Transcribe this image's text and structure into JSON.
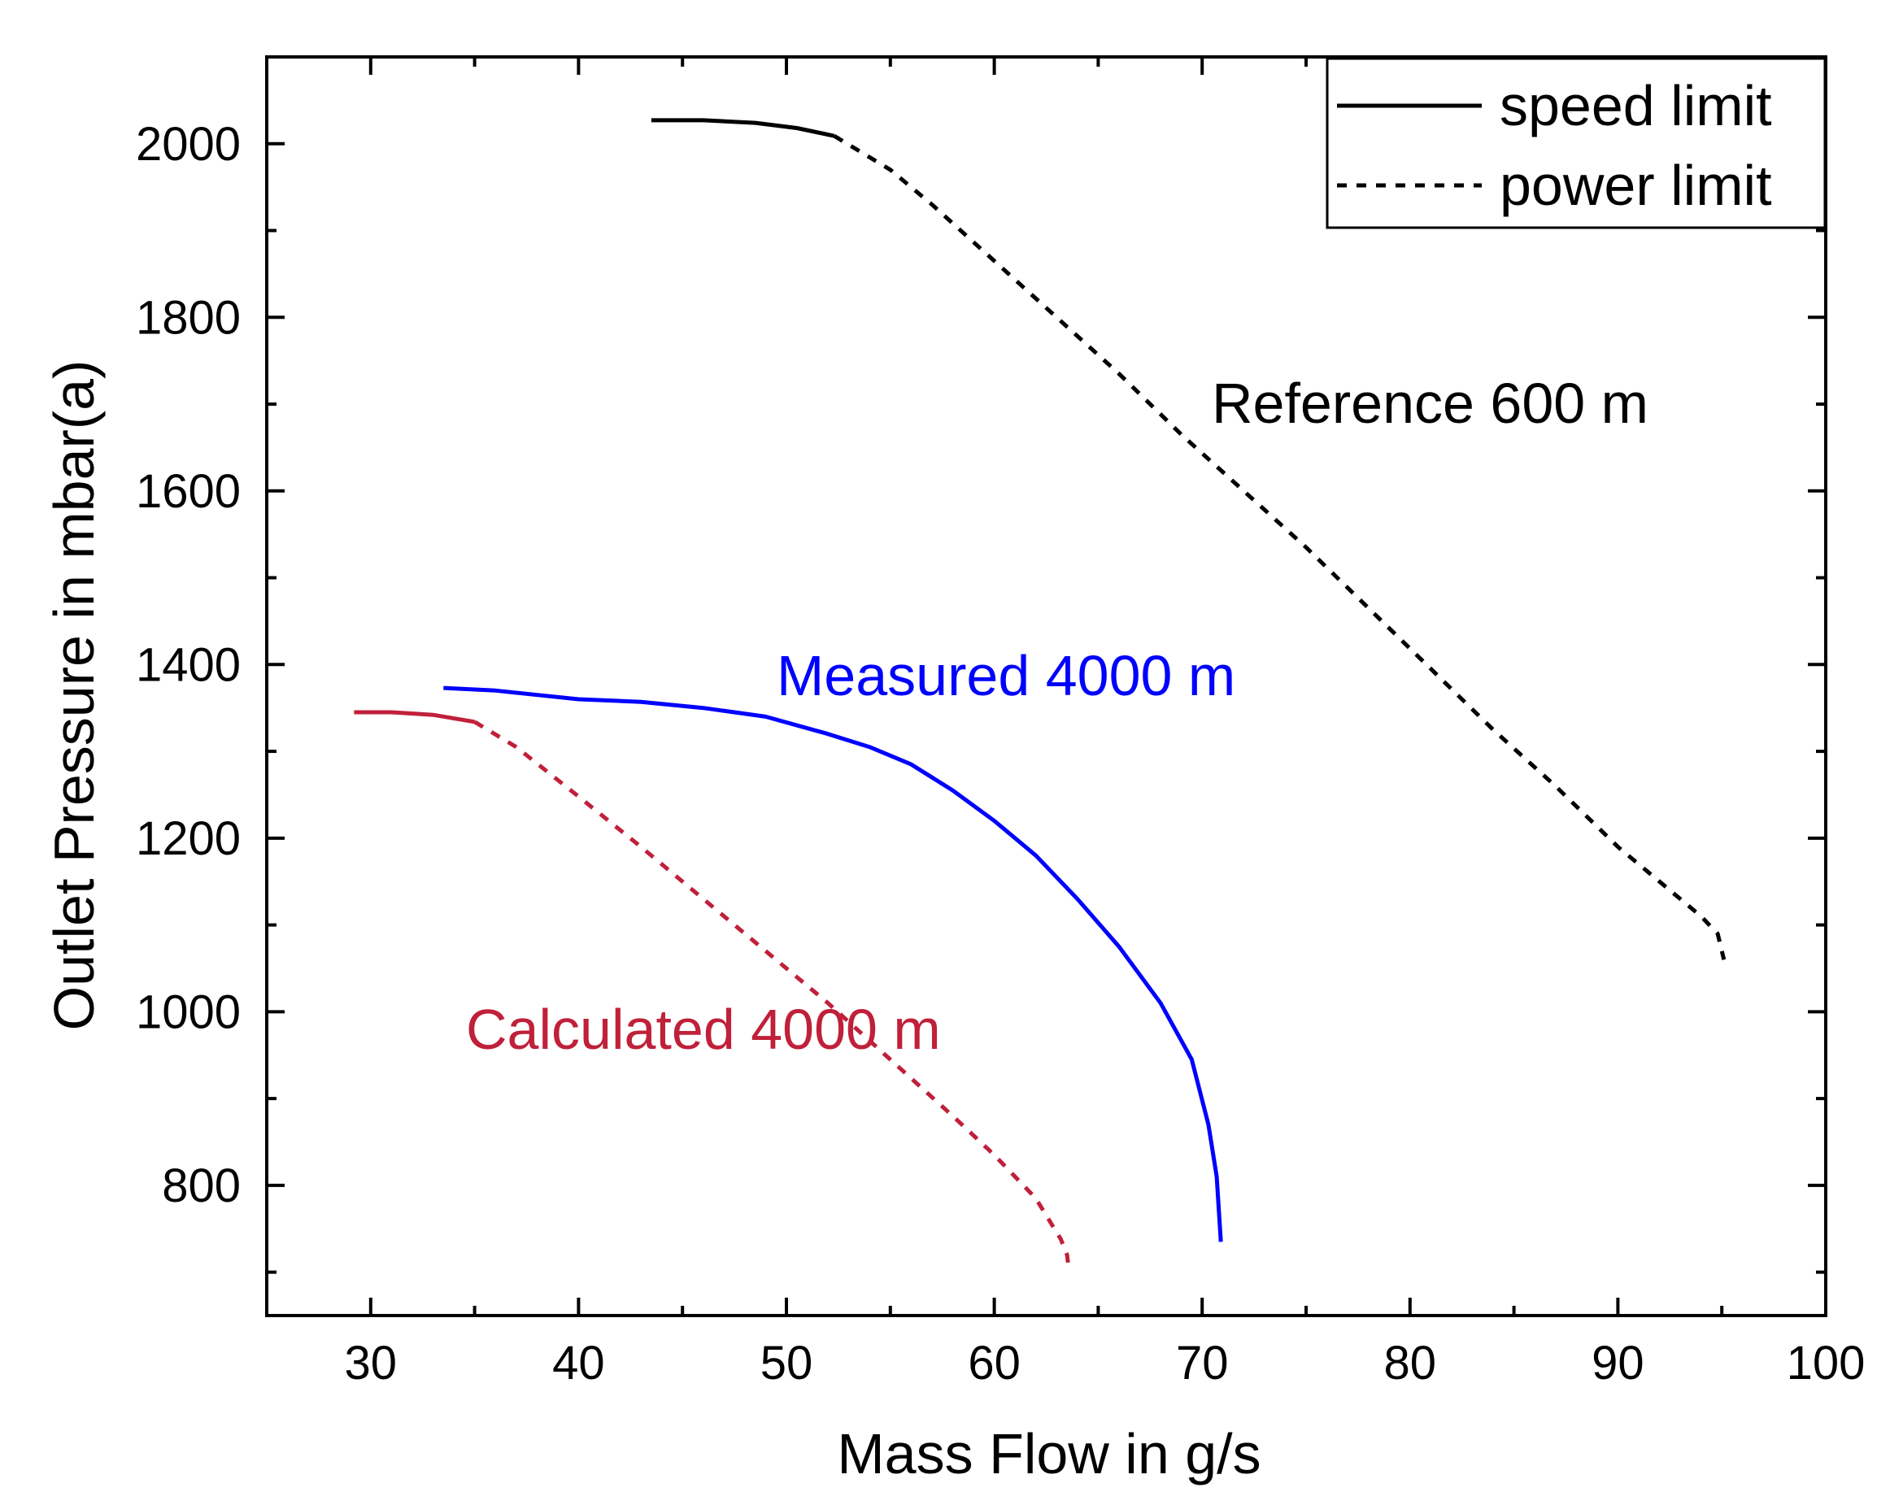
{
  "chart_data": {
    "type": "line",
    "xlabel": "Mass Flow in g/s",
    "ylabel": "Outlet Pressure in mbar(a)",
    "xlim": [
      25,
      100
    ],
    "ylim": [
      650,
      2100
    ],
    "xticks": [
      30,
      40,
      50,
      60,
      70,
      80,
      90,
      100
    ],
    "yticks": [
      800,
      1000,
      1200,
      1400,
      1600,
      1800,
      2000
    ],
    "grid": false,
    "legend": {
      "position": "top-right",
      "entries": [
        {
          "label": "speed limit",
          "style": "solid"
        },
        {
          "label": "power limit",
          "style": "dashed"
        }
      ]
    },
    "annotations": [
      {
        "text": "Reference 600 m",
        "color": "#000000"
      },
      {
        "text": "Measured 4000 m",
        "color": "#0000ff"
      },
      {
        "text": "Calculated 4000 m",
        "color": "#c0203a"
      }
    ],
    "series": [
      {
        "color": "#000000",
        "style": "solid",
        "x": [
          43.5,
          46,
          48.5,
          50.5,
          52.3
        ],
        "y": [
          2027,
          2027,
          2024,
          2018,
          2009
        ]
      },
      {
        "color": "#000000",
        "style": "dashed",
        "x": [
          52.3,
          55,
          57,
          60,
          63,
          66,
          69,
          72,
          75,
          78,
          81,
          84,
          87,
          90,
          92,
          94,
          94.8,
          95.1
        ],
        "y": [
          2009,
          1970,
          1930,
          1865,
          1800,
          1735,
          1665,
          1600,
          1535,
          1465,
          1395,
          1325,
          1260,
          1190,
          1150,
          1110,
          1090,
          1060
        ]
      },
      {
        "color": "#0000ff",
        "style": "solid",
        "x": [
          33.5,
          36,
          38,
          40,
          43,
          46,
          49,
          52,
          54,
          56,
          58,
          60,
          62,
          64,
          66,
          68,
          69.5,
          70.3,
          70.7,
          70.9
        ],
        "y": [
          1373,
          1370,
          1365,
          1360,
          1357,
          1350,
          1340,
          1320,
          1305,
          1285,
          1255,
          1220,
          1180,
          1130,
          1075,
          1010,
          945,
          870,
          810,
          735
        ]
      },
      {
        "color": "#c0203a",
        "style": "solid",
        "x": [
          29.2,
          31,
          33,
          35
        ],
        "y": [
          1345,
          1345,
          1342,
          1334
        ]
      },
      {
        "color": "#c0203a",
        "style": "dashed",
        "x": [
          35,
          37,
          40,
          43,
          46,
          49,
          52,
          55,
          58,
          60,
          62,
          63.2,
          63.5,
          63.6
        ],
        "y": [
          1334,
          1305,
          1248,
          1190,
          1130,
          1070,
          1010,
          945,
          880,
          835,
          785,
          738,
          720,
          700
        ]
      }
    ]
  }
}
